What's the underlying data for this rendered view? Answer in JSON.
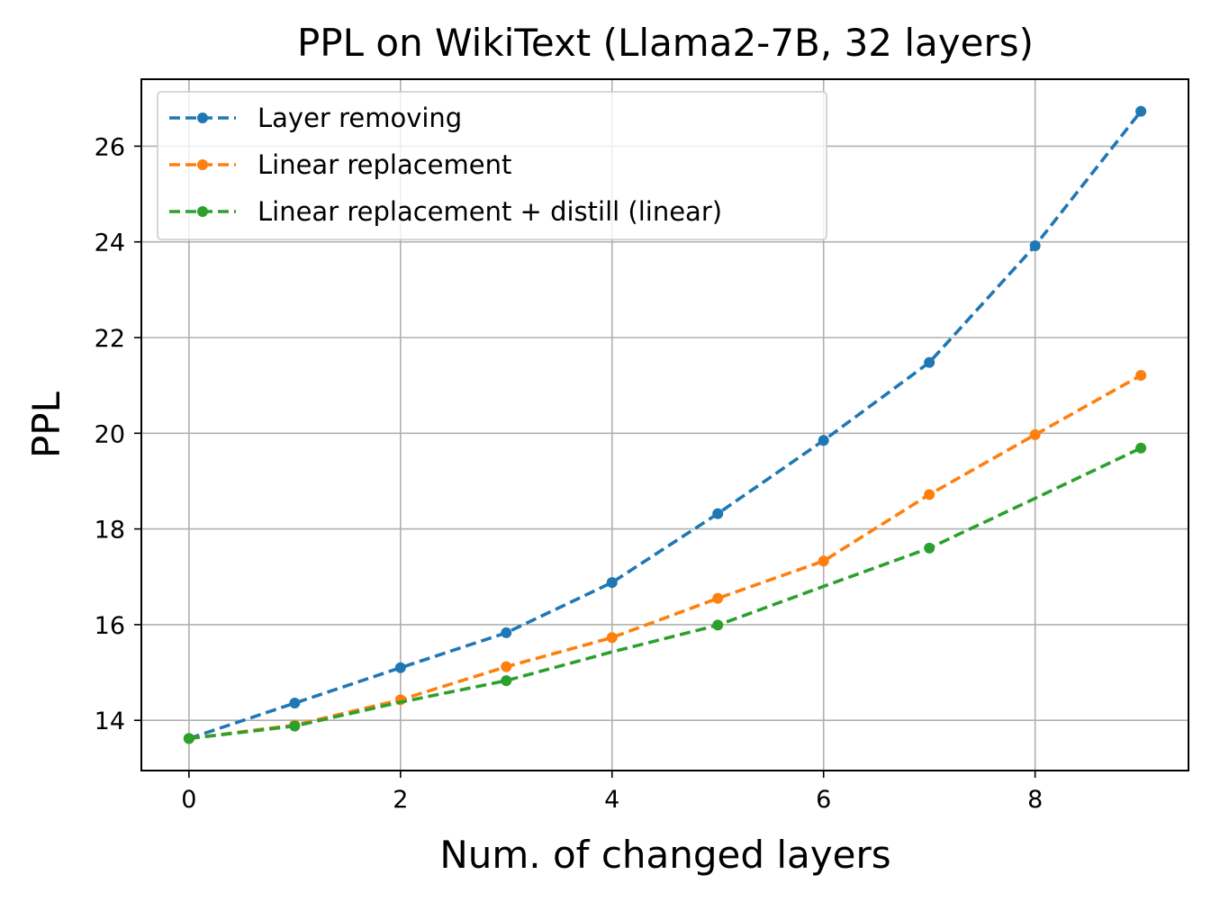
{
  "chart_data": {
    "type": "line",
    "title": "PPL on WikiText (Llama2-7B, 32 layers)",
    "xlabel": "Num. of changed layers",
    "ylabel": "PPL",
    "xlim": [
      -0.45,
      9.45
    ],
    "ylim": [
      12.95,
      27.4
    ],
    "xticks": [
      0,
      2,
      4,
      6,
      8
    ],
    "yticks": [
      14,
      16,
      18,
      20,
      22,
      24,
      26
    ],
    "grid": true,
    "legend_position": "top-left",
    "series": [
      {
        "name": "Layer removing",
        "color": "#1f77b4",
        "x": [
          0,
          1,
          2,
          3,
          4,
          5,
          6,
          7,
          8,
          9
        ],
        "y": [
          13.62,
          14.36,
          15.1,
          15.83,
          16.88,
          18.32,
          19.85,
          21.48,
          23.92,
          26.73
        ]
      },
      {
        "name": "Linear replacement",
        "color": "#ff7f0e",
        "x": [
          0,
          1,
          2,
          3,
          4,
          5,
          6,
          7,
          8,
          9
        ],
        "y": [
          13.62,
          13.9,
          14.43,
          15.12,
          15.73,
          16.55,
          17.33,
          18.72,
          19.97,
          21.21
        ]
      },
      {
        "name": "Linear replacement + distill (linear)",
        "color": "#2ca02c",
        "x": [
          0,
          1,
          2,
          3,
          4,
          5,
          6,
          7,
          8,
          9
        ],
        "y": [
          13.62,
          13.88,
          14.38,
          14.83,
          15.43,
          15.99,
          16.8,
          17.6,
          18.64,
          19.69
        ],
        "markers_at": [
          0,
          1,
          3,
          5,
          7,
          9
        ]
      }
    ]
  }
}
